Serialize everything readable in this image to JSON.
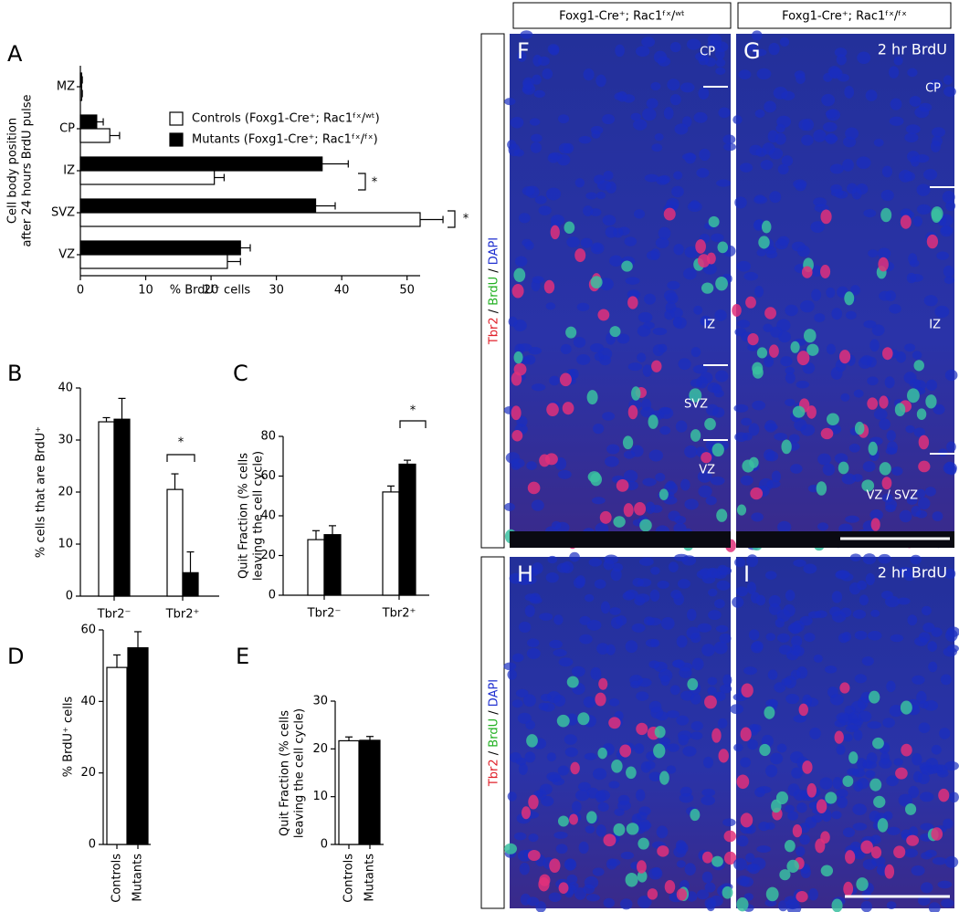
{
  "chart_data": [
    {
      "type": "bar",
      "panel": "A",
      "orientation": "horizontal",
      "categories": [
        "MZ",
        "CP",
        "IZ",
        "SVZ",
        "VZ"
      ],
      "series": [
        {
          "name": "Mutants (Foxg1-Cre⁺; Rac1ᶠˣ/ᶠˣ)",
          "color": "#000000",
          "values": [
            0.2,
            2.5,
            37,
            36,
            24.5
          ],
          "errors": [
            0.1,
            1,
            4,
            3,
            1.5
          ]
        },
        {
          "name": "Controls (Foxg1-Cre⁺; Rac1ᶠˣ/ʷᵗ)",
          "color": "#ffffff",
          "values": [
            0.2,
            4.5,
            20.5,
            52,
            22.5
          ],
          "errors": [
            0.1,
            1.5,
            1.5,
            3.5,
            2
          ]
        }
      ],
      "xlim": [
        0,
        52
      ],
      "xticks": [
        0,
        10,
        20,
        30,
        40,
        50
      ],
      "xlabel": "% BrdU⁺ cells",
      "ylabel": [
        "Cell body position",
        "after 24 hours BrdU pulse"
      ],
      "annotations": [
        {
          "text": "*"
        },
        {
          "text": "*"
        }
      ]
    },
    {
      "type": "bar",
      "panel": "B",
      "categories": [
        "Tbr2⁻",
        "Tbr2⁺"
      ],
      "series": [
        {
          "color": "#ffffff",
          "values": [
            33.5,
            20.5
          ],
          "errors": [
            0.8,
            3
          ]
        },
        {
          "color": "#000000",
          "values": [
            34,
            4.5
          ],
          "errors": [
            4,
            4
          ]
        }
      ],
      "ylim": [
        0,
        40
      ],
      "yticks": [
        0,
        10,
        20,
        30,
        40
      ],
      "ylabel": [
        "% cells that are BrdU⁺"
      ],
      "annotations": [
        {
          "text": "*"
        }
      ]
    },
    {
      "type": "bar",
      "panel": "C",
      "categories": [
        "Tbr2⁻",
        "Tbr2⁺"
      ],
      "series": [
        {
          "color": "#ffffff",
          "values": [
            28,
            52
          ],
          "errors": [
            4.5,
            3
          ]
        },
        {
          "color": "#000000",
          "values": [
            30.5,
            66
          ],
          "errors": [
            4.5,
            2
          ]
        }
      ],
      "ylim": [
        0,
        80
      ],
      "yticks": [
        0,
        20,
        40,
        60,
        80
      ],
      "ylabel": [
        "Quit Fraction (% cells",
        "leaving the cell cycle)"
      ],
      "annotations": [
        {
          "text": "*"
        }
      ]
    },
    {
      "type": "bar",
      "panel": "D",
      "categories": [
        "Controls",
        "Mutants"
      ],
      "values": [
        49.5,
        55
      ],
      "errors": [
        3.5,
        4.5
      ],
      "colors": [
        "#ffffff",
        "#000000"
      ],
      "ylim": [
        0,
        60
      ],
      "yticks": [
        0,
        20,
        40,
        60
      ],
      "ylabel": [
        "% BrdU⁺ cells"
      ]
    },
    {
      "type": "bar",
      "panel": "E",
      "categories": [
        "Controls",
        "Mutants"
      ],
      "values": [
        21.7,
        21.8
      ],
      "errors": [
        0.8,
        0.8
      ],
      "colors": [
        "#ffffff",
        "#000000"
      ],
      "ylim": [
        0,
        30
      ],
      "yticks": [
        0,
        10,
        20,
        30
      ],
      "ylabel": [
        "Quit Fraction (% cells",
        "leaving the cell cycle)"
      ]
    }
  ],
  "images": {
    "headers": [
      "Foxg1-Cre⁺; Rac1ᶠˣ/ʷᵗ",
      "Foxg1-Cre⁺; Rac1ᶠˣ/ᶠˣ"
    ],
    "stain": {
      "parts": [
        "Tbr2",
        "BrdU",
        "DAPI"
      ],
      "separator": " / "
    },
    "panels": [
      {
        "letter": "F",
        "labels": [
          "CP",
          "IZ",
          "SVZ",
          "VZ"
        ]
      },
      {
        "letter": "G",
        "note": "2 hr BrdU",
        "labels": [
          "CP",
          "IZ",
          "VZ / SVZ"
        ]
      },
      {
        "letter": "H"
      },
      {
        "letter": "I",
        "note": "2 hr BrdU"
      }
    ]
  }
}
